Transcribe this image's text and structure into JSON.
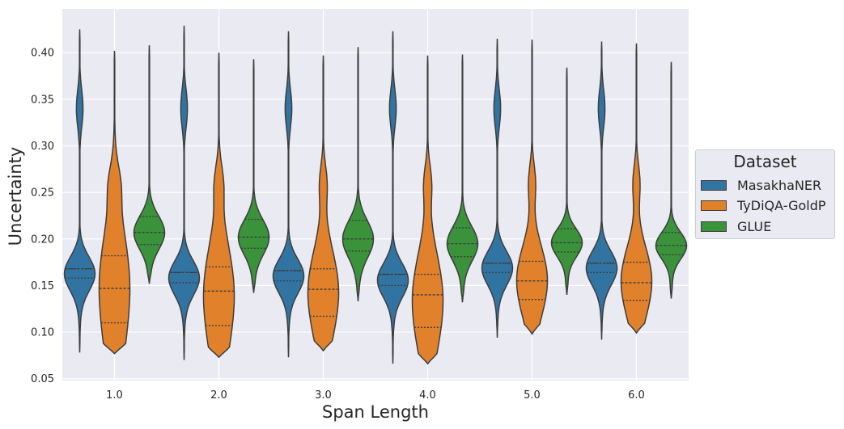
{
  "chart_data": {
    "type": "violin",
    "xlabel": "Span Length",
    "ylabel": "Uncertainty",
    "categories": [
      "1.0",
      "2.0",
      "3.0",
      "4.0",
      "5.0",
      "6.0"
    ],
    "yticks": [
      "0.05",
      "0.10",
      "0.15",
      "0.20",
      "0.25",
      "0.30",
      "0.35",
      "0.40"
    ],
    "ylim": [
      0.048,
      0.447
    ],
    "grid": true,
    "legend": {
      "title": "Dataset",
      "placement": "right"
    },
    "inner": "quartile",
    "series": [
      {
        "name": "MasakhaNER",
        "color": "#3274a1",
        "stats": [
          {
            "min": 0.078,
            "q1": 0.158,
            "median": 0.168,
            "q3": 0.168,
            "max": 0.425
          },
          {
            "min": 0.07,
            "q1": 0.153,
            "median": 0.164,
            "q3": 0.164,
            "max": 0.429
          },
          {
            "min": 0.073,
            "q1": 0.155,
            "median": 0.166,
            "q3": 0.166,
            "max": 0.423
          },
          {
            "min": 0.066,
            "q1": 0.15,
            "median": 0.162,
            "q3": 0.162,
            "max": 0.423
          },
          {
            "min": 0.094,
            "q1": 0.164,
            "median": 0.174,
            "q3": 0.174,
            "max": 0.415
          },
          {
            "min": 0.092,
            "q1": 0.164,
            "median": 0.174,
            "q3": 0.174,
            "max": 0.412
          }
        ]
      },
      {
        "name": "TyDiQA-GoldP",
        "color": "#e1812c",
        "stats": [
          {
            "min": 0.077,
            "q1": 0.11,
            "median": 0.147,
            "q3": 0.182,
            "max": 0.402
          },
          {
            "min": 0.073,
            "q1": 0.107,
            "median": 0.144,
            "q3": 0.17,
            "max": 0.4
          },
          {
            "min": 0.08,
            "q1": 0.117,
            "median": 0.146,
            "q3": 0.168,
            "max": 0.397
          },
          {
            "min": 0.066,
            "q1": 0.105,
            "median": 0.14,
            "q3": 0.162,
            "max": 0.397
          },
          {
            "min": 0.098,
            "q1": 0.135,
            "median": 0.155,
            "q3": 0.176,
            "max": 0.414
          },
          {
            "min": 0.099,
            "q1": 0.134,
            "median": 0.153,
            "q3": 0.175,
            "max": 0.41
          }
        ]
      },
      {
        "name": "GLUE",
        "color": "#3a923a",
        "stats": [
          {
            "min": 0.152,
            "q1": 0.194,
            "median": 0.207,
            "q3": 0.224,
            "max": 0.408
          },
          {
            "min": 0.142,
            "q1": 0.19,
            "median": 0.202,
            "q3": 0.221,
            "max": 0.393
          },
          {
            "min": 0.133,
            "q1": 0.187,
            "median": 0.2,
            "q3": 0.22,
            "max": 0.406
          },
          {
            "min": 0.132,
            "q1": 0.181,
            "median": 0.195,
            "q3": 0.212,
            "max": 0.398
          },
          {
            "min": 0.14,
            "q1": 0.186,
            "median": 0.196,
            "q3": 0.211,
            "max": 0.384
          },
          {
            "min": 0.136,
            "q1": 0.183,
            "median": 0.193,
            "q3": 0.207,
            "max": 0.39
          }
        ]
      }
    ]
  }
}
